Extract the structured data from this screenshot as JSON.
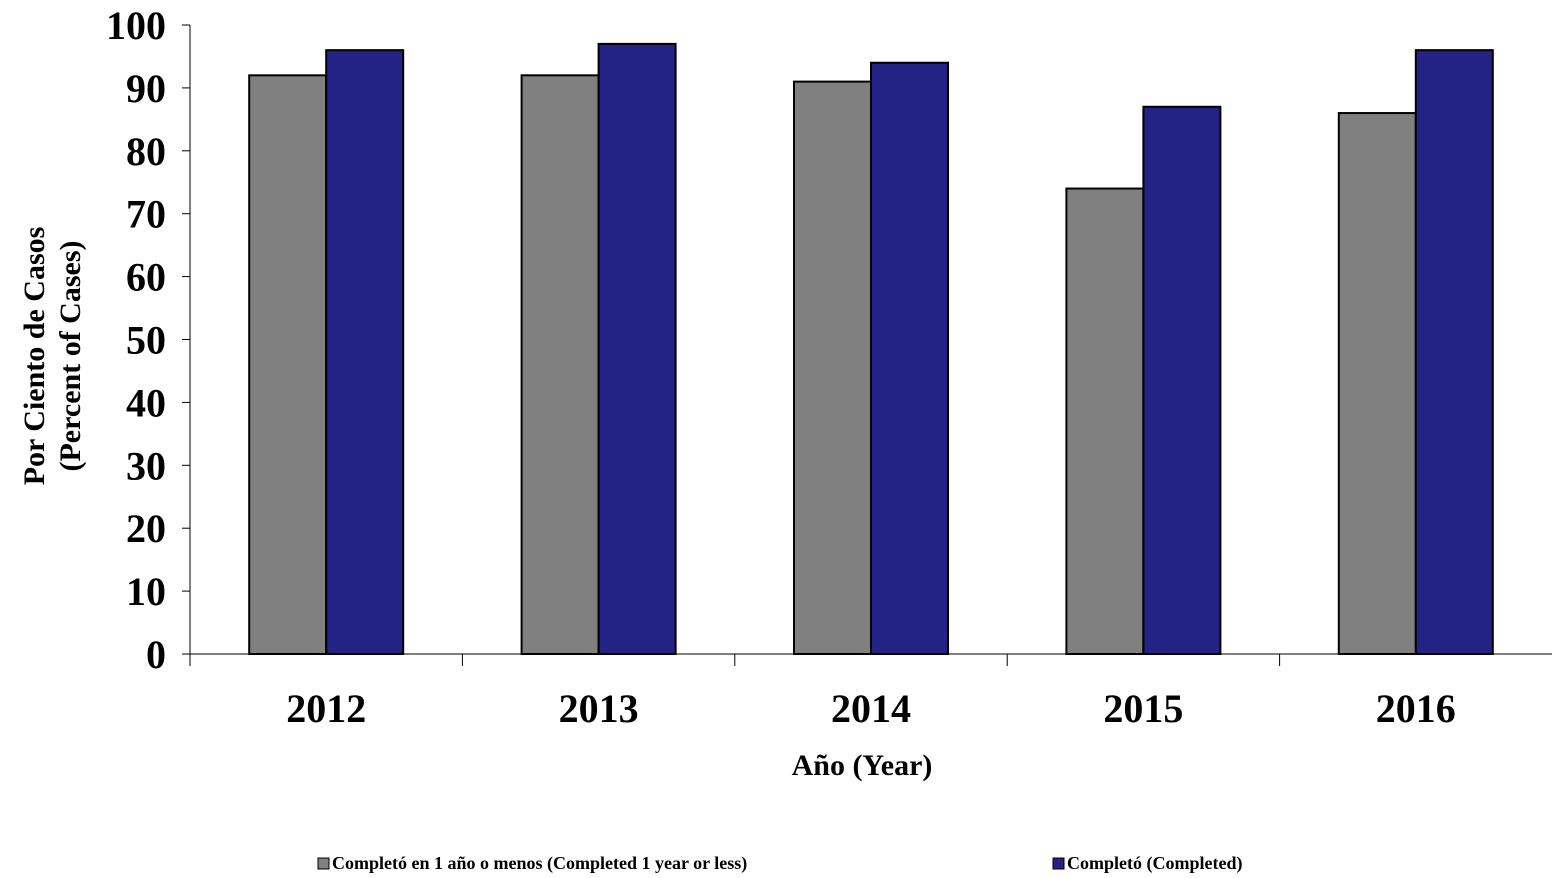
{
  "chart_data": {
    "type": "bar",
    "categories": [
      "2012",
      "2013",
      "2014",
      "2015",
      "2016"
    ],
    "series": [
      {
        "name": "Completó en 1 año o menos (Completed 1 year or less)",
        "values": [
          92,
          92,
          91,
          74,
          86
        ],
        "color": "#808080"
      },
      {
        "name": "Completó (Completed)",
        "values": [
          96,
          97,
          94,
          87,
          96
        ],
        "color": "#232386"
      }
    ],
    "title": "",
    "xlabel": "Año (Year)",
    "ylabel_line1": "Por Ciento de Casos",
    "ylabel_line2": "(Percent of Cases)",
    "ylim": [
      0,
      100
    ],
    "yticks": [
      0,
      10,
      20,
      30,
      40,
      50,
      60,
      70,
      80,
      90,
      100
    ],
    "grid": false,
    "legend_position": "bottom"
  }
}
